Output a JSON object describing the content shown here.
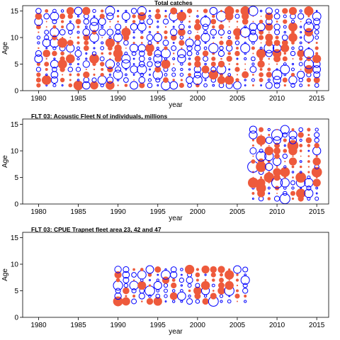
{
  "colors": {
    "positive": "#0000ff",
    "negative": "#ee5a3c"
  },
  "chart_data": [
    {
      "type": "scatter",
      "title": "Total catches",
      "xlabel": "year",
      "ylabel": "Age",
      "xlim": [
        1978,
        2016.5
      ],
      "ylim": [
        0,
        16
      ],
      "xticks": [
        1980,
        1985,
        1990,
        1995,
        2000,
        2005,
        2010,
        2015
      ],
      "yticks": [
        0,
        5,
        10,
        15
      ],
      "marker": "bubble",
      "grid": false,
      "x_range": [
        1980,
        2015
      ],
      "age_range": [
        1,
        15
      ],
      "seed": 11,
      "base_radius": 1.9
    },
    {
      "type": "scatter",
      "title": "FLT 03: Acoustic Fleet   N of individuals, millions",
      "xlabel": "year",
      "ylabel": "Age",
      "xlim": [
        1978,
        2016.5
      ],
      "ylim": [
        0,
        16
      ],
      "xticks": [
        1980,
        1985,
        1990,
        1995,
        2000,
        2005,
        2010,
        2015
      ],
      "yticks": [
        0,
        5,
        10,
        15
      ],
      "marker": "bubble",
      "grid": false,
      "x_range": [
        2007,
        2015
      ],
      "age_range": [
        1,
        14
      ],
      "seed": 23,
      "base_radius": 2.2
    },
    {
      "type": "scatter",
      "title": "FLT 03: CPUE Trapnet fleet area 23, 42 and 47",
      "xlabel": "year",
      "ylabel": "Age",
      "xlim": [
        1978,
        2016.5
      ],
      "ylim": [
        0,
        16
      ],
      "xticks": [
        1980,
        1985,
        1990,
        1995,
        2000,
        2005,
        2010,
        2015
      ],
      "yticks": [
        0,
        5,
        10,
        15
      ],
      "marker": "bubble",
      "grid": false,
      "x_range": [
        1990,
        2006
      ],
      "age_range": [
        3,
        9
      ],
      "seed": 37,
      "base_radius": 1.9
    }
  ]
}
